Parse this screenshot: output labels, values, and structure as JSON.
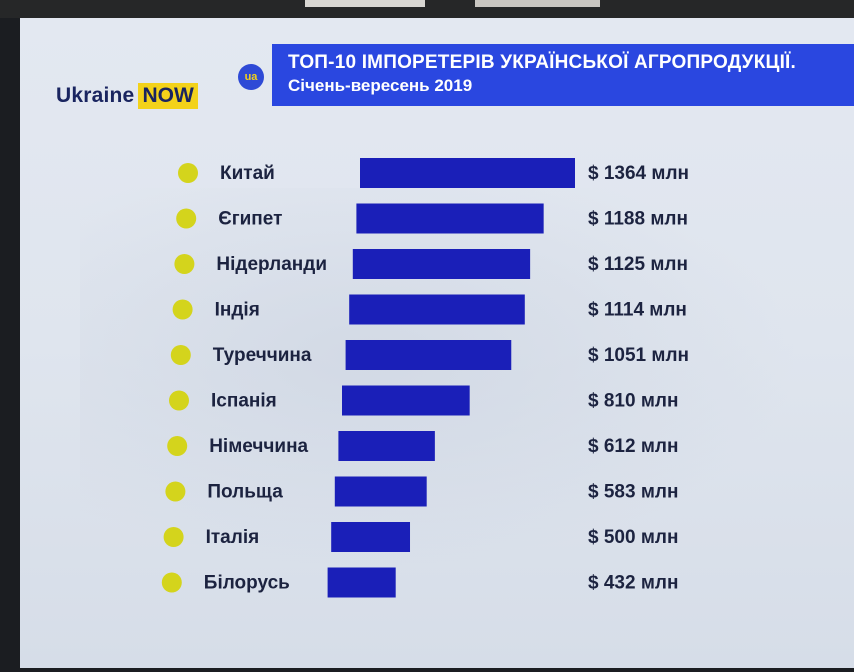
{
  "brand": {
    "name": "Ukraine",
    "highlight": "NOW",
    "badge": "ua"
  },
  "header": {
    "title": "ТОП-10 ІМПОРЕТЕРІВ УКРАЇНСЬКОЇ АГРОПРОДУКЦІЇ.",
    "subtitle": "Січень-вересень 2019"
  },
  "colors": {
    "bar": "#1a1fb8",
    "bullet": "#d4d41c",
    "title_bg": "#2a47e0",
    "text": "#1c2340"
  },
  "chart_data": {
    "type": "bar",
    "orientation": "horizontal",
    "title": "ТОП-10 ІМПОРЕТЕРІВ УКРАЇНСЬКОЇ АГРОПРОДУКЦІЇ.",
    "subtitle": "Січень-вересень 2019",
    "xlabel": "",
    "ylabel": "",
    "grid": false,
    "legend": "none",
    "categories": [
      "Китай",
      "Єгипет",
      "Нідерланди",
      "Індія",
      "Туреччина",
      "Іспанія",
      "Німеччина",
      "Польща",
      "Італія",
      "Білорусь"
    ],
    "values": [
      1364,
      1188,
      1125,
      1114,
      1051,
      810,
      612,
      583,
      500,
      432
    ],
    "value_labels": [
      "$ 1364 млн",
      "$ 1188 млн",
      "$ 1125 млн",
      "$ 1114 млн",
      "$ 1051 млн",
      "$ 810 млн",
      "$ 612 млн",
      "$ 583 млн",
      "$ 500 млн",
      "$ 432 млн"
    ]
  }
}
